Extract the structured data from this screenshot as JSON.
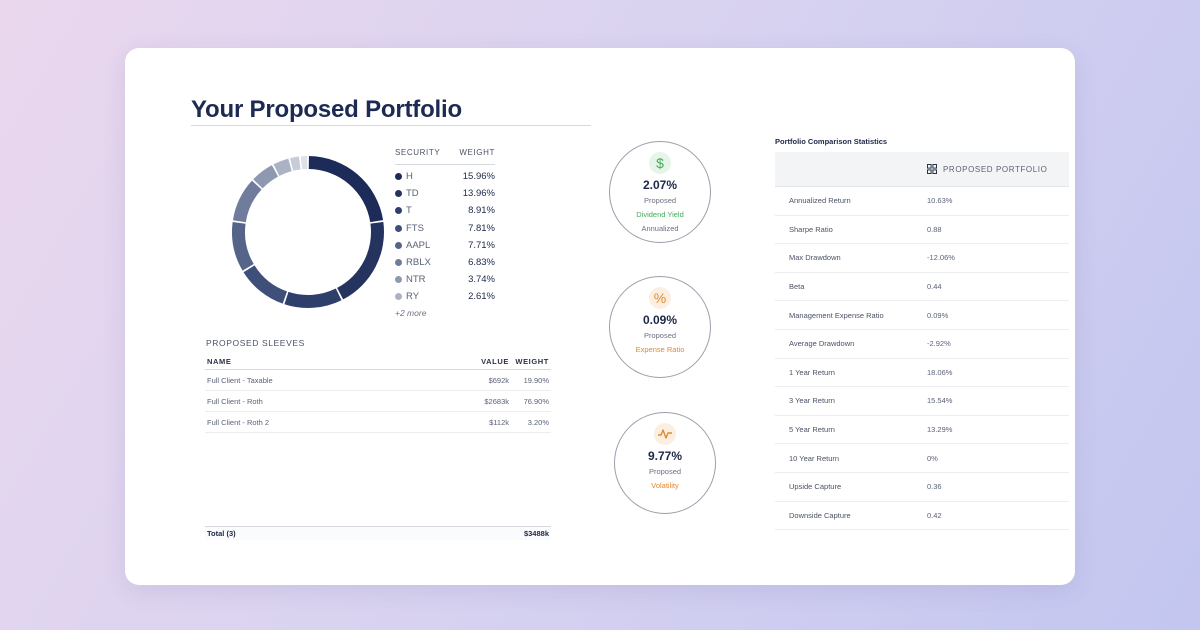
{
  "page": {
    "title": "Your Proposed Portfolio"
  },
  "holdings": {
    "header_security": "SECURITY",
    "header_weight": "WEIGHT",
    "items": [
      {
        "ticker": "H",
        "weight": "15.96%",
        "value": 15.96,
        "color": "#1c2b57"
      },
      {
        "ticker": "TD",
        "weight": "13.96%",
        "value": 13.96,
        "color": "#24345f"
      },
      {
        "ticker": "T",
        "weight": "8.91%",
        "value": 8.91,
        "color": "#2f3f6b"
      },
      {
        "ticker": "FTS",
        "weight": "7.81%",
        "value": 7.81,
        "color": "#3e4f79"
      },
      {
        "ticker": "AAPL",
        "weight": "7.71%",
        "value": 7.71,
        "color": "#556488"
      },
      {
        "ticker": "RBLX",
        "weight": "6.83%",
        "value": 6.83,
        "color": "#6f7c9b"
      },
      {
        "ticker": "NTR",
        "weight": "3.74%",
        "value": 3.74,
        "color": "#8e98b0"
      },
      {
        "ticker": "RY",
        "weight": "2.61%",
        "value": 2.61,
        "color": "#aab2c4"
      }
    ],
    "extra_slices": [
      {
        "value": 1.6,
        "color": "#c6ccd8"
      },
      {
        "value": 1.2,
        "color": "#dde1e8"
      }
    ],
    "more_label": "+2 more"
  },
  "sleeves": {
    "title": "PROPOSED SLEEVES",
    "header_name": "NAME",
    "header_value": "VALUE",
    "header_weight": "WEIGHT",
    "rows": [
      {
        "name": "Full Client - Taxable",
        "value": "$692k",
        "weight": "19.90%"
      },
      {
        "name": "Full Client - Roth",
        "value": "$2683k",
        "weight": "76.90%"
      },
      {
        "name": "Full Client - Roth 2",
        "value": "$112k",
        "weight": "3.20%"
      }
    ],
    "total_label": "Total (3)",
    "total_value": "$3488k"
  },
  "stats": [
    {
      "icon": "dollar-icon",
      "value": "2.07%",
      "sub": "Proposed",
      "label": "Dividend Yield",
      "note": "Annualized",
      "color": "#3fae5a",
      "icon_bg": "#e6f4e9"
    },
    {
      "icon": "percent-icon",
      "value": "0.09%",
      "sub": "Proposed",
      "label": "Expense Ratio",
      "note": "",
      "color": "#e08a2e",
      "icon_bg": "#fcefe1"
    },
    {
      "icon": "pulse-icon",
      "value": "9.77%",
      "sub": "Proposed",
      "label": "Volatility",
      "note": "",
      "color": "#e08a2e",
      "icon_bg": "#fcefe1"
    }
  ],
  "comparison": {
    "title": "Portfolio Comparison Statistics",
    "column_label": "PROPOSED PORTFOLIO",
    "rows": [
      {
        "metric": "Annualized Return",
        "value": "10.63%"
      },
      {
        "metric": "Sharpe Ratio",
        "value": "0.88"
      },
      {
        "metric": "Max Drawdown",
        "value": "-12.06%"
      },
      {
        "metric": "Beta",
        "value": "0.44"
      },
      {
        "metric": "Management Expense Ratio",
        "value": "0.09%"
      },
      {
        "metric": "Average Drawdown",
        "value": "-2.92%"
      },
      {
        "metric": "1 Year Return",
        "value": "18.06%"
      },
      {
        "metric": "3 Year Return",
        "value": "15.54%"
      },
      {
        "metric": "5 Year Return",
        "value": "13.29%"
      },
      {
        "metric": "10 Year Return",
        "value": "0%"
      },
      {
        "metric": "Upside Capture",
        "value": "0.36"
      },
      {
        "metric": "Downside Capture",
        "value": "0.42"
      }
    ]
  }
}
